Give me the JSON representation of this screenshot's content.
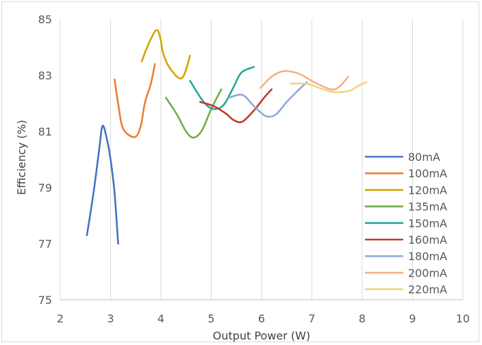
{
  "chart_data": {
    "type": "line",
    "title": "",
    "xlabel": "Output Power (W)",
    "ylabel": "Efficiency (%)",
    "xlim": [
      2,
      10
    ],
    "ylim": [
      75,
      85
    ],
    "xticks": [
      "2",
      "3",
      "4",
      "5",
      "6",
      "7",
      "8",
      "9",
      "10"
    ],
    "yticks": [
      "75",
      "77",
      "79",
      "81",
      "83",
      "85"
    ],
    "grid": "vertical",
    "legend_position": "right",
    "series": [
      {
        "name": "80mA",
        "color": "#4472c4",
        "points": [
          [
            2.53,
            77.3
          ],
          [
            2.66,
            78.8
          ],
          [
            2.77,
            80.3
          ],
          [
            2.84,
            81.2
          ],
          [
            2.93,
            80.7
          ],
          [
            3.0,
            80.0
          ],
          [
            3.08,
            78.8
          ],
          [
            3.15,
            77.0
          ]
        ]
      },
      {
        "name": "100mA",
        "color": "#ed7d31",
        "points": [
          [
            3.08,
            82.85
          ],
          [
            3.15,
            82.0
          ],
          [
            3.25,
            81.1
          ],
          [
            3.48,
            80.8
          ],
          [
            3.6,
            81.2
          ],
          [
            3.68,
            82.0
          ],
          [
            3.8,
            82.7
          ],
          [
            3.88,
            83.4
          ]
        ]
      },
      {
        "name": "120mA",
        "color": "#d4a500",
        "points": [
          [
            3.62,
            83.5
          ],
          [
            3.75,
            84.1
          ],
          [
            3.9,
            84.6
          ],
          [
            3.98,
            84.4
          ],
          [
            4.05,
            83.75
          ],
          [
            4.2,
            83.2
          ],
          [
            4.42,
            82.9
          ],
          [
            4.58,
            83.7
          ]
        ]
      },
      {
        "name": "135mA",
        "color": "#70ad47",
        "points": [
          [
            4.1,
            82.2
          ],
          [
            4.32,
            81.6
          ],
          [
            4.5,
            81.0
          ],
          [
            4.65,
            80.78
          ],
          [
            4.82,
            81.05
          ],
          [
            5.0,
            81.8
          ],
          [
            5.2,
            82.5
          ]
        ]
      },
      {
        "name": "150mA",
        "color": "#26a69a",
        "points": [
          [
            4.58,
            82.8
          ],
          [
            4.85,
            82.05
          ],
          [
            5.05,
            81.8
          ],
          [
            5.25,
            81.95
          ],
          [
            5.45,
            82.6
          ],
          [
            5.6,
            83.1
          ],
          [
            5.85,
            83.3
          ]
        ]
      },
      {
        "name": "160mA",
        "color": "#c0392b",
        "points": [
          [
            4.78,
            82.05
          ],
          [
            5.05,
            81.9
          ],
          [
            5.28,
            81.65
          ],
          [
            5.45,
            81.4
          ],
          [
            5.62,
            81.35
          ],
          [
            5.85,
            81.75
          ],
          [
            6.05,
            82.2
          ],
          [
            6.2,
            82.5
          ]
        ]
      },
      {
        "name": "180mA",
        "color": "#8ea9db",
        "points": [
          [
            5.35,
            82.2
          ],
          [
            5.62,
            82.3
          ],
          [
            5.85,
            81.9
          ],
          [
            6.08,
            81.55
          ],
          [
            6.28,
            81.6
          ],
          [
            6.5,
            82.05
          ],
          [
            6.72,
            82.45
          ],
          [
            6.9,
            82.75
          ]
        ]
      },
      {
        "name": "200mA",
        "color": "#f4b183",
        "points": [
          [
            5.98,
            82.55
          ],
          [
            6.2,
            82.95
          ],
          [
            6.45,
            83.15
          ],
          [
            6.75,
            83.05
          ],
          [
            7.05,
            82.75
          ],
          [
            7.38,
            82.5
          ],
          [
            7.55,
            82.6
          ],
          [
            7.72,
            82.95
          ]
        ]
      },
      {
        "name": "220mA",
        "color": "#f6d37b",
        "points": [
          [
            6.58,
            82.7
          ],
          [
            6.9,
            82.7
          ],
          [
            7.15,
            82.55
          ],
          [
            7.45,
            82.4
          ],
          [
            7.75,
            82.45
          ],
          [
            7.95,
            82.65
          ],
          [
            8.08,
            82.75
          ]
        ]
      }
    ]
  }
}
